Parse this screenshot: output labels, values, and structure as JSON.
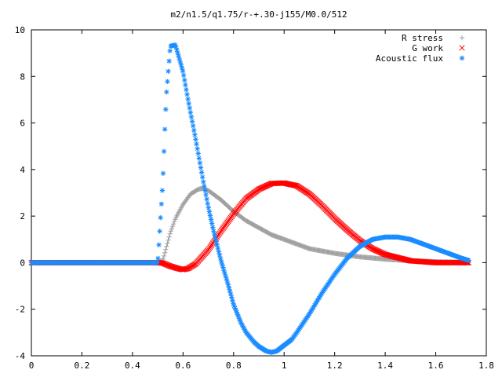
{
  "chart_data": {
    "type": "scatter",
    "title": "m2/n1.5/q1.75/r-+.30-j155/M0.0/512",
    "xlabel": "",
    "ylabel": "",
    "xlim": [
      0,
      1.8
    ],
    "ylim": [
      -4,
      10
    ],
    "x_ticks": [
      "0",
      "0.2",
      "0.4",
      "0.6",
      "0.8",
      "1",
      "1.2",
      "1.4",
      "1.6",
      "1.8"
    ],
    "y_ticks": [
      "-4",
      "-2",
      "0",
      "2",
      "4",
      "6",
      "8",
      "10"
    ],
    "grid": false,
    "legend_position": "top-right",
    "series": [
      {
        "name": "R stress",
        "marker": "plus",
        "color": "#a0a0a0",
        "x": [
          0,
          0.1,
          0.2,
          0.3,
          0.4,
          0.5,
          0.52,
          0.53,
          0.55,
          0.57,
          0.6,
          0.63,
          0.66,
          0.68,
          0.7,
          0.75,
          0.8,
          0.85,
          0.9,
          0.95,
          1.0,
          1.05,
          1.1,
          1.2,
          1.3,
          1.4,
          1.5,
          1.6,
          1.7,
          1.73
        ],
        "y": [
          0,
          0,
          0,
          0,
          0,
          0,
          0.1,
          0.5,
          1.3,
          1.9,
          2.5,
          2.95,
          3.15,
          3.2,
          3.1,
          2.7,
          2.2,
          1.8,
          1.5,
          1.2,
          1.0,
          0.8,
          0.6,
          0.4,
          0.25,
          0.15,
          0.08,
          0.04,
          0.02,
          0.0
        ]
      },
      {
        "name": "G work",
        "marker": "cross",
        "color": "#ff0000",
        "x": [
          0,
          0.1,
          0.2,
          0.3,
          0.4,
          0.5,
          0.52,
          0.55,
          0.58,
          0.6,
          0.62,
          0.65,
          0.7,
          0.75,
          0.8,
          0.85,
          0.9,
          0.95,
          1.0,
          1.05,
          1.1,
          1.15,
          1.2,
          1.25,
          1.3,
          1.35,
          1.4,
          1.5,
          1.6,
          1.7,
          1.73
        ],
        "y": [
          0,
          0,
          0,
          0,
          0,
          0,
          -0.02,
          -0.15,
          -0.25,
          -0.3,
          -0.25,
          -0.05,
          0.55,
          1.35,
          2.1,
          2.75,
          3.15,
          3.4,
          3.42,
          3.3,
          2.95,
          2.45,
          1.9,
          1.4,
          0.95,
          0.6,
          0.35,
          0.08,
          0.0,
          0.0,
          0.0
        ]
      },
      {
        "name": "Acoustic flux",
        "marker": "star",
        "color": "#1a8cff",
        "x": [
          0,
          0.1,
          0.2,
          0.3,
          0.4,
          0.5,
          0.52,
          0.53,
          0.535,
          0.54,
          0.55,
          0.57,
          0.6,
          0.62,
          0.65,
          0.68,
          0.7,
          0.72,
          0.75,
          0.78,
          0.8,
          0.83,
          0.85,
          0.88,
          0.9,
          0.93,
          0.95,
          0.97,
          1.0,
          1.03,
          1.05,
          1.1,
          1.15,
          1.2,
          1.25,
          1.3,
          1.35,
          1.4,
          1.45,
          1.5,
          1.55,
          1.6,
          1.65,
          1.7,
          1.73
        ],
        "y": [
          0,
          0,
          0,
          0,
          0,
          0,
          3.45,
          6.25,
          7.35,
          8.0,
          9.3,
          9.35,
          8.2,
          7.0,
          5.3,
          3.5,
          2.4,
          1.4,
          0.1,
          -1.0,
          -1.8,
          -2.6,
          -3.0,
          -3.4,
          -3.6,
          -3.8,
          -3.85,
          -3.8,
          -3.55,
          -3.3,
          -3.0,
          -2.2,
          -1.3,
          -0.5,
          0.2,
          0.7,
          1.0,
          1.1,
          1.1,
          1.0,
          0.8,
          0.6,
          0.4,
          0.2,
          0.1
        ]
      }
    ]
  }
}
